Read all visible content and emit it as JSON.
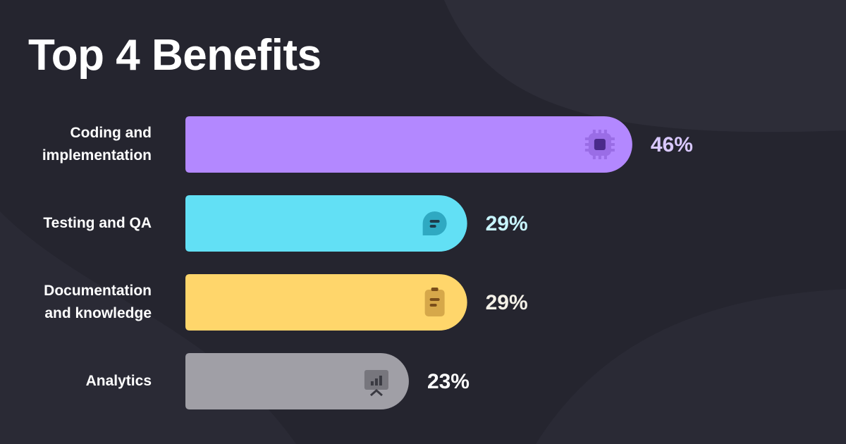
{
  "chart_data": {
    "type": "bar",
    "orientation": "horizontal",
    "title": "Top 4 Benefits",
    "categories": [
      "Coding and implementation",
      "Testing and QA",
      "Documentation and knowledge",
      "Analytics"
    ],
    "values": [
      46,
      29,
      29,
      23
    ],
    "value_labels": [
      "46%",
      "29%",
      "29%",
      "23%"
    ],
    "colors": [
      "#b388ff",
      "#62e0f5",
      "#ffd66b",
      "#a09fa6"
    ],
    "label_colors": [
      "#d9c8ff",
      "#c8f5fd",
      "#f4f1e8",
      "#ffffff"
    ]
  }
}
